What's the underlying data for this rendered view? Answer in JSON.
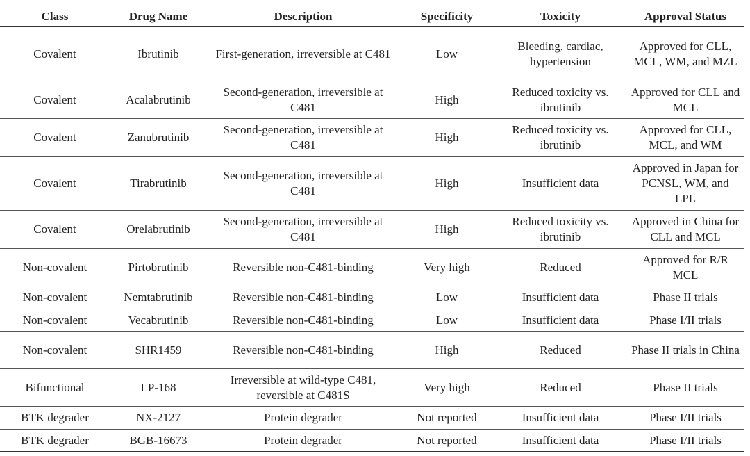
{
  "table": {
    "header": [
      "Class",
      "Drug Name",
      "Description",
      "Specificity",
      "Toxicity",
      "Approval Status"
    ],
    "rows": [
      [
        "Covalent",
        "Ibrutinib",
        "First-generation, irreversible at C481",
        "Low",
        "Bleeding, cardiac, hypertension",
        "Approved for CLL, MCL, WM, and MZL"
      ],
      [
        "Covalent",
        "Acalabrutinib",
        "Second-generation, irreversible at C481",
        "High",
        "Reduced toxicity vs. ibrutinib",
        "Approved for CLL and MCL"
      ],
      [
        "Covalent",
        "Zanubrutinib",
        "Second-generation, irreversible at C481",
        "High",
        "Reduced toxicity vs. ibrutinib",
        "Approved for CLL, MCL, and WM"
      ],
      [
        "Covalent",
        "Tirabrutinib",
        "Second-generation, irreversible at C481",
        "High",
        "Insufficient data",
        "Approved in Japan for PCNSL, WM, and LPL"
      ],
      [
        "Covalent",
        "Orelabrutinib",
        "Second-generation, irreversible at C481",
        "High",
        "Reduced toxicity vs. ibrutinib",
        "Approved in China for CLL and MCL"
      ],
      [
        "Non-covalent",
        "Pirtobrutinib",
        "Reversible non-C481-binding",
        "Very high",
        "Reduced",
        "Approved for R/R MCL"
      ],
      [
        "Non-covalent",
        "Nemtabrutinib",
        "Reversible non-C481-binding",
        "Low",
        "Insufficient data",
        "Phase II trials"
      ],
      [
        "Non-covalent",
        "Vecabrutinib",
        "Reversible non-C481-binding",
        "Low",
        "Insufficient data",
        "Phase I/II trials"
      ],
      [
        "Non-covalent",
        "SHR1459",
        "Reversible non-C481-binding",
        "High",
        "Reduced",
        "Phase II trials in China"
      ],
      [
        "Bifunctional",
        "LP-168",
        "Irreversible at wild-type C481, reversible at C481S",
        "Very high",
        "Reduced",
        "Phase II trials"
      ],
      [
        "BTK degrader",
        "NX-2127",
        "Protein degrader",
        "Not reported",
        "Insufficient data",
        "Phase I/II trials"
      ],
      [
        "BTK degrader",
        "BGB-16673",
        "Protein degrader",
        "Not reported",
        "Insufficient data",
        "Phase I/II trials"
      ]
    ]
  }
}
